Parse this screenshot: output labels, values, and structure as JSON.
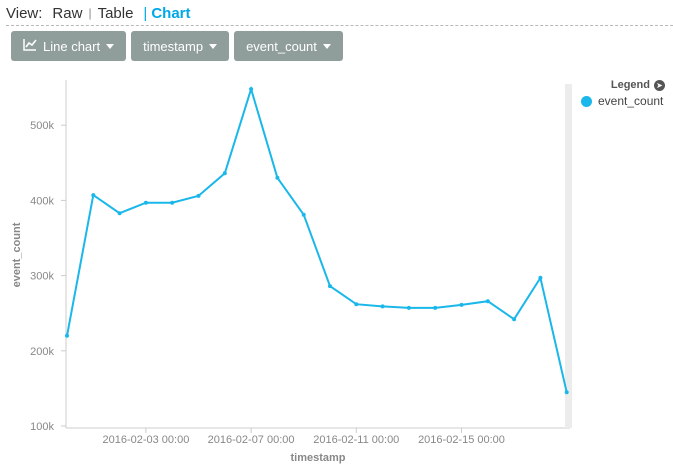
{
  "view": {
    "prefix": "View:",
    "options": [
      "Raw",
      "Table",
      "Chart"
    ],
    "active": "Chart"
  },
  "toolbar": {
    "chart_type_label": "Line chart",
    "chart_type_icon": "line-chart-icon",
    "x_field_label": "timestamp",
    "y_field_label": "event_count"
  },
  "legend": {
    "title": "Legend",
    "items": [
      {
        "label": "event_count",
        "color": "#1ab7ea"
      }
    ]
  },
  "colors": {
    "accent": "#00a8e8",
    "button": "#8f9d9b",
    "series": "#1ab7ea"
  },
  "chart_data": {
    "type": "line",
    "xlabel": "timestamp",
    "ylabel": "event_count",
    "x_ticks": [
      "2016-02-03 00:00",
      "2016-02-07 00:00",
      "2016-02-11 00:00",
      "2016-02-15 00:00"
    ],
    "y_ticks": [
      "100k",
      "200k",
      "300k",
      "400k",
      "500k"
    ],
    "ylim": [
      100000,
      550000
    ],
    "grid": false,
    "legend_position": "top-right",
    "series": [
      {
        "name": "event_count",
        "x": [
          "2016-01-31",
          "2016-02-01",
          "2016-02-02",
          "2016-02-03",
          "2016-02-04",
          "2016-02-05",
          "2016-02-06",
          "2016-02-07",
          "2016-02-08",
          "2016-02-09",
          "2016-02-10",
          "2016-02-11",
          "2016-02-12",
          "2016-02-13",
          "2016-02-14",
          "2016-02-15",
          "2016-02-16",
          "2016-02-17",
          "2016-02-18",
          "2016-02-19"
        ],
        "values": [
          220000,
          407000,
          383000,
          397000,
          397000,
          406000,
          436000,
          548000,
          430000,
          381000,
          286000,
          262000,
          259000,
          257000,
          257000,
          261000,
          266000,
          242000,
          297000,
          145000
        ]
      }
    ]
  }
}
